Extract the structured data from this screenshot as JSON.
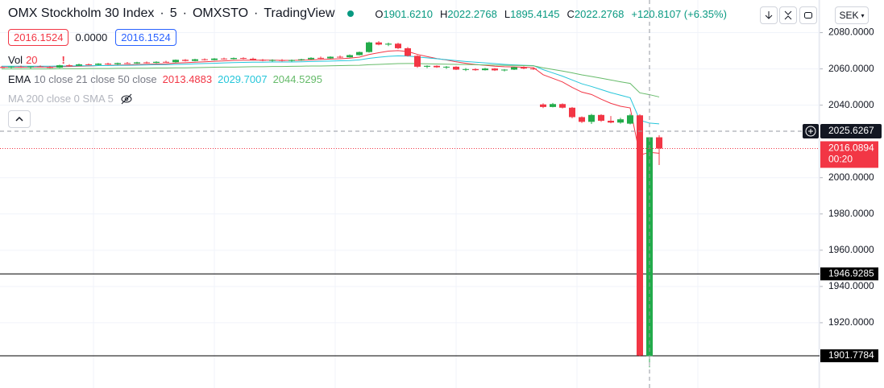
{
  "header": {
    "title": "OMX Stockholm 30 Index",
    "interval": "5",
    "exchange": "OMXSTO",
    "source": "TradingView",
    "ohlc": [
      {
        "key": "O",
        "value": "1901.6210"
      },
      {
        "key": "H",
        "value": "2022.2768"
      },
      {
        "key": "L",
        "value": "1895.4145"
      },
      {
        "key": "C",
        "value": "2022.2768"
      }
    ],
    "change": "+120.8107 (+6.35%)",
    "sell": "2016.1524",
    "spread": "0.0000",
    "buy": "2016.1524",
    "volume_label": "Vol",
    "volume_value": "20",
    "warning": "!",
    "ema_label": "EMA",
    "ema_params": "10 close 21 close 50 close",
    "ma_label": "MA 200 close 0 SMA 5",
    "currency": "SEK",
    "countdown": "00:20"
  },
  "chart_data": {
    "type": "candlestick",
    "up_color": "#22ab4a",
    "down_color": "#f23645",
    "open": [
      2061,
      2060.8,
      2061.2,
      2060.9,
      2061.3,
      2061.0,
      2060.7,
      2062.0,
      2061.8,
      2062.5,
      2062.2,
      2062.9,
      2062.6,
      2063.2,
      2063.0,
      2063.6,
      2063.3,
      2063.9,
      2063.7,
      2065.0,
      2064.4,
      2065.3,
      2064.9,
      2065.7,
      2065.4,
      2066.0,
      2065.6,
      2065.0,
      2064.6,
      2064.9,
      2064.4,
      2064.9,
      2065.3,
      2066.1,
      2065.8,
      2066.7,
      2066.4,
      2067.6,
      2069.3,
      2074.6,
      2073.4,
      2073.9,
      2071.4,
      2067.2,
      2061.2,
      2061.7,
      2060.9,
      2061.2,
      2059.6,
      2059.9,
      2059.3,
      2060.2,
      2059.2,
      2059.6,
      2060.9,
      2060.2,
      2040.4,
      2039.0,
      2040.6,
      2038.6,
      2033.4,
      2030.8,
      2034.6,
      2031.4,
      2030.4,
      2029.8,
      2034.4,
      1901.621,
      2022.2768
    ],
    "high": [
      2061.5,
      2061.5,
      2061.8,
      2061.4,
      2061.9,
      2061.6,
      2062.3,
      2062.6,
      2062.9,
      2063.0,
      2063.2,
      2063.4,
      2063.5,
      2063.8,
      2063.9,
      2064.1,
      2064.2,
      2064.5,
      2065.2,
      2065.4,
      2065.6,
      2065.8,
      2066.0,
      2066.2,
      2066.3,
      2066.4,
      2066.2,
      2065.5,
      2065.3,
      2065.4,
      2065.2,
      2065.6,
      2066.4,
      2066.8,
      2067.0,
      2067.4,
      2068.0,
      2069.6,
      2075.0,
      2075.3,
      2074.5,
      2074.4,
      2072.0,
      2067.6,
      2062.0,
      2062.0,
      2061.6,
      2061.5,
      2060.5,
      2060.4,
      2060.6,
      2060.5,
      2059.9,
      2061.2,
      2061.4,
      2060.7,
      2041.0,
      2041.2,
      2041.0,
      2039.0,
      2033.8,
      2035.2,
      2035.0,
      2034.0,
      2033.0,
      2035.2,
      2035.0,
      2022.2768,
      2023.4
    ],
    "low": [
      2060.5,
      2060.3,
      2060.6,
      2060.2,
      2060.9,
      2060.4,
      2060.5,
      2061.4,
      2061.6,
      2061.9,
      2062.0,
      2062.3,
      2062.2,
      2062.7,
      2062.8,
      2063.0,
      2063.1,
      2063.4,
      2063.5,
      2064.1,
      2064.2,
      2064.6,
      2064.7,
      2065.1,
      2065.2,
      2065.3,
      2064.8,
      2064.2,
      2064.0,
      2064.1,
      2064.0,
      2064.5,
      2065.1,
      2065.5,
      2065.6,
      2066.0,
      2066.2,
      2067.4,
      2069.0,
      2073.0,
      2072.6,
      2071.0,
      2066.8,
      2060.6,
      2060.4,
      2060.6,
      2060.0,
      2059.4,
      2058.8,
      2059.0,
      2059.1,
      2058.9,
      2058.6,
      2059.4,
      2059.8,
      2059.5,
      2038.4,
      2038.8,
      2038.2,
      2032.8,
      2030.2,
      2029.6,
      2030.8,
      2030.0,
      2029.8,
      2029.4,
      1901.4,
      1895.4145,
      2007.0
    ],
    "close": [
      2060.8,
      2061.2,
      2060.9,
      2061.3,
      2061.0,
      2060.7,
      2062.0,
      2061.8,
      2062.5,
      2062.2,
      2062.9,
      2062.6,
      2063.2,
      2063.0,
      2063.6,
      2063.3,
      2063.9,
      2063.7,
      2065.0,
      2064.4,
      2065.3,
      2064.9,
      2065.7,
      2065.4,
      2066.0,
      2065.6,
      2065.0,
      2064.6,
      2064.9,
      2064.4,
      2064.9,
      2065.3,
      2066.1,
      2065.8,
      2066.7,
      2066.4,
      2067.6,
      2069.3,
      2074.6,
      2073.4,
      2073.9,
      2071.4,
      2067.2,
      2061.2,
      2061.7,
      2060.9,
      2061.2,
      2059.6,
      2059.9,
      2059.3,
      2060.2,
      2059.2,
      2059.6,
      2060.9,
      2060.2,
      2059.8,
      2039.0,
      2040.6,
      2038.6,
      2033.4,
      2030.8,
      2034.6,
      2031.4,
      2030.4,
      2032.2,
      2034.4,
      1901.9,
      2022.2768,
      2016.0894
    ],
    "series": [
      {
        "color": "#f23645",
        "values": [
          2061.0,
          2061.0,
          2061.0,
          2061.0,
          2061.1,
          2061.0,
          2061.2,
          2061.3,
          2061.5,
          2061.6,
          2061.8,
          2061.9,
          2062.1,
          2062.2,
          2062.4,
          2062.5,
          2062.7,
          2062.8,
          2063.2,
          2063.4,
          2063.7,
          2063.9,
          2064.2,
          2064.4,
          2064.7,
          2064.8,
          2064.8,
          2064.8,
          2064.8,
          2064.7,
          2064.7,
          2064.8,
          2065.0,
          2065.2,
          2065.4,
          2065.6,
          2065.9,
          2066.5,
          2067.9,
          2068.9,
          2069.8,
          2070.1,
          2069.6,
          2068.0,
          2066.8,
          2065.7,
          2064.9,
          2063.9,
          2063.1,
          2062.4,
          2062.0,
          2061.5,
          2061.2,
          2061.1,
          2060.9,
          2060.7,
          2056.8,
          2054.8,
          2052.8,
          2049.8,
          2047.2,
          2045.9,
          2043.3,
          2041.0,
          2039.4,
          2038.5,
          2012.5,
          2014.0,
          2013.4883
        ]
      },
      {
        "color": "#26c6da",
        "values": [
          2061.5,
          2061.5,
          2061.5,
          2061.5,
          2061.5,
          2061.5,
          2061.6,
          2061.6,
          2061.7,
          2061.7,
          2061.8,
          2061.8,
          2061.9,
          2062.0,
          2062.1,
          2062.2,
          2062.3,
          2062.3,
          2062.5,
          2062.6,
          2062.8,
          2063.0,
          2063.1,
          2063.3,
          2063.5,
          2063.6,
          2063.7,
          2063.7,
          2063.8,
          2063.8,
          2063.8,
          2063.9,
          2064.1,
          2064.2,
          2064.3,
          2064.5,
          2064.6,
          2065.0,
          2065.8,
          2066.4,
          2066.9,
          2067.2,
          2067.1,
          2066.6,
          2066.1,
          2065.6,
          2065.1,
          2064.6,
          2064.1,
          2063.7,
          2063.3,
          2062.9,
          2062.5,
          2062.2,
          2062.0,
          2061.8,
          2059.6,
          2057.8,
          2056.0,
          2053.9,
          2051.8,
          2050.3,
          2048.6,
          2046.9,
          2045.5,
          2044.1,
          2031.7,
          2030.1,
          2029.7007
        ]
      },
      {
        "color": "#66bb6a",
        "values": [
          2060.0,
          2060.0,
          2060.0,
          2060.0,
          2060.0,
          2060.0,
          2060.1,
          2060.1,
          2060.1,
          2060.2,
          2060.2,
          2060.2,
          2060.3,
          2060.3,
          2060.4,
          2060.4,
          2060.5,
          2060.5,
          2060.6,
          2060.6,
          2060.7,
          2060.8,
          2060.9,
          2061.0,
          2061.0,
          2061.1,
          2061.2,
          2061.2,
          2061.3,
          2061.3,
          2061.4,
          2061.5,
          2061.6,
          2061.6,
          2061.7,
          2061.8,
          2061.9,
          2062.0,
          2062.3,
          2062.5,
          2062.7,
          2062.9,
          2063.0,
          2062.9,
          2062.8,
          2062.7,
          2062.6,
          2062.5,
          2062.4,
          2062.3,
          2062.2,
          2062.1,
          2062.0,
          2061.9,
          2061.8,
          2061.7,
          2060.6,
          2059.7,
          2058.8,
          2057.8,
          2056.7,
          2055.8,
          2054.9,
          2053.9,
          2052.9,
          2052.0,
          2046.8,
          2045.8,
          2044.5295
        ]
      }
    ],
    "hlines": [
      {
        "value": 1946.9285,
        "color": "#000000"
      },
      {
        "value": 1901.7784,
        "color": "#000000"
      }
    ],
    "crosshair": 2025.6267,
    "ylim": [
      1884,
      2098
    ],
    "yticks": [
      {
        "value": 1920,
        "label": "1920.0000"
      },
      {
        "value": 1940,
        "label": "1940.0000"
      },
      {
        "value": 1960,
        "label": "1960.0000"
      },
      {
        "value": 1980,
        "label": "1980.0000"
      },
      {
        "value": 2000,
        "label": "2000.0000"
      },
      {
        "value": 2040,
        "label": "2040.0000"
      },
      {
        "value": 2060,
        "label": "2060.0000"
      },
      {
        "value": 2080,
        "label": "2080.0000"
      }
    ],
    "grid": true
  }
}
